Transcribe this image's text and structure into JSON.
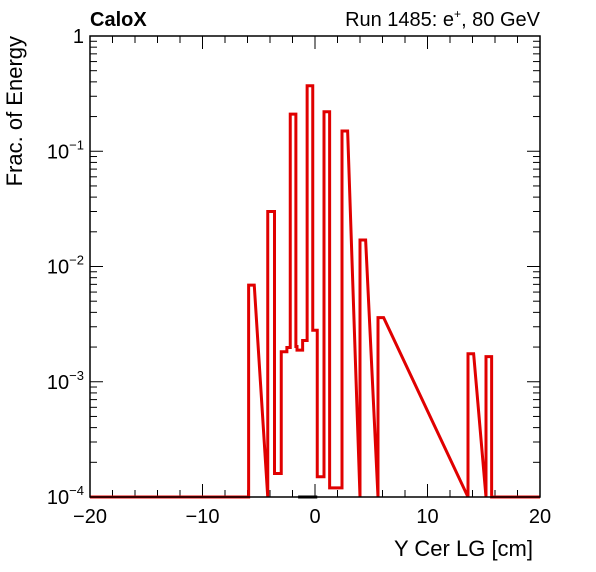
{
  "header": {
    "left_label": "CaloX",
    "right_label": "Run 1485: e",
    "right_label_sup": "+",
    "right_label_tail": ", 80 GeV"
  },
  "chart_data": {
    "type": "histogram-step",
    "xlabel": "Y Cer LG [cm]",
    "ylabel": "Frac. of Energy",
    "xlim": [
      -20,
      20
    ],
    "ylim": [
      0.0001,
      1
    ],
    "yscale": "log",
    "grid": false,
    "x_ticks": [
      {
        "value": -20,
        "label": "−20"
      },
      {
        "value": -10,
        "label": "−10"
      },
      {
        "value": 0,
        "label": "0"
      },
      {
        "value": 10,
        "label": "10"
      },
      {
        "value": 20,
        "label": "20"
      }
    ],
    "y_ticks": [
      {
        "value": 0.0001,
        "base": "10",
        "exp": "−4"
      },
      {
        "value": 0.001,
        "base": "10",
        "exp": "−3"
      },
      {
        "value": 0.01,
        "base": "10",
        "exp": "−2"
      },
      {
        "value": 0.1,
        "base": "10",
        "exp": "−1"
      },
      {
        "value": 1,
        "base": "1",
        "exp": ""
      }
    ],
    "line_color": "#e00000",
    "baseline_color": "#000000",
    "bins": [
      {
        "x0": -5.9,
        "x1": -5.4,
        "y": 0.0069
      },
      {
        "x0": -4.2,
        "x1": -3.6,
        "y": 0.03
      },
      {
        "x0": -3.6,
        "x1": -3.0,
        "y": 0.00016
      },
      {
        "x0": -3.0,
        "x1": -2.5,
        "y": 0.00182
      },
      {
        "x0": -2.5,
        "x1": -2.2,
        "y": 0.00198
      },
      {
        "x0": -2.2,
        "x1": -1.7,
        "y": 0.21
      },
      {
        "x0": -1.7,
        "x1": -1.6,
        "y": 0.00202
      },
      {
        "x0": -1.6,
        "x1": -1.1,
        "y": 0.00188
      },
      {
        "x0": -1.1,
        "x1": -0.7,
        "y": 0.00228
      },
      {
        "x0": -0.7,
        "x1": -0.2,
        "y": 0.37
      },
      {
        "x0": -0.2,
        "x1": 0.2,
        "y": 0.0028
      },
      {
        "x0": 0.2,
        "x1": 0.8,
        "y": 0.00015
      },
      {
        "x0": 0.8,
        "x1": 1.3,
        "y": 0.22
      },
      {
        "x0": 1.3,
        "x1": 2.4,
        "y": 0.00012
      },
      {
        "x0": 2.4,
        "x1": 2.9,
        "y": 0.15
      },
      {
        "x0": 4.0,
        "x1": 4.5,
        "y": 0.017
      },
      {
        "x0": 5.6,
        "x1": 6.1,
        "y": 0.0036
      },
      {
        "x0": 13.6,
        "x1": 14.1,
        "y": 0.00175
      },
      {
        "x0": 15.2,
        "x1": 15.7,
        "y": 0.00165
      }
    ]
  }
}
